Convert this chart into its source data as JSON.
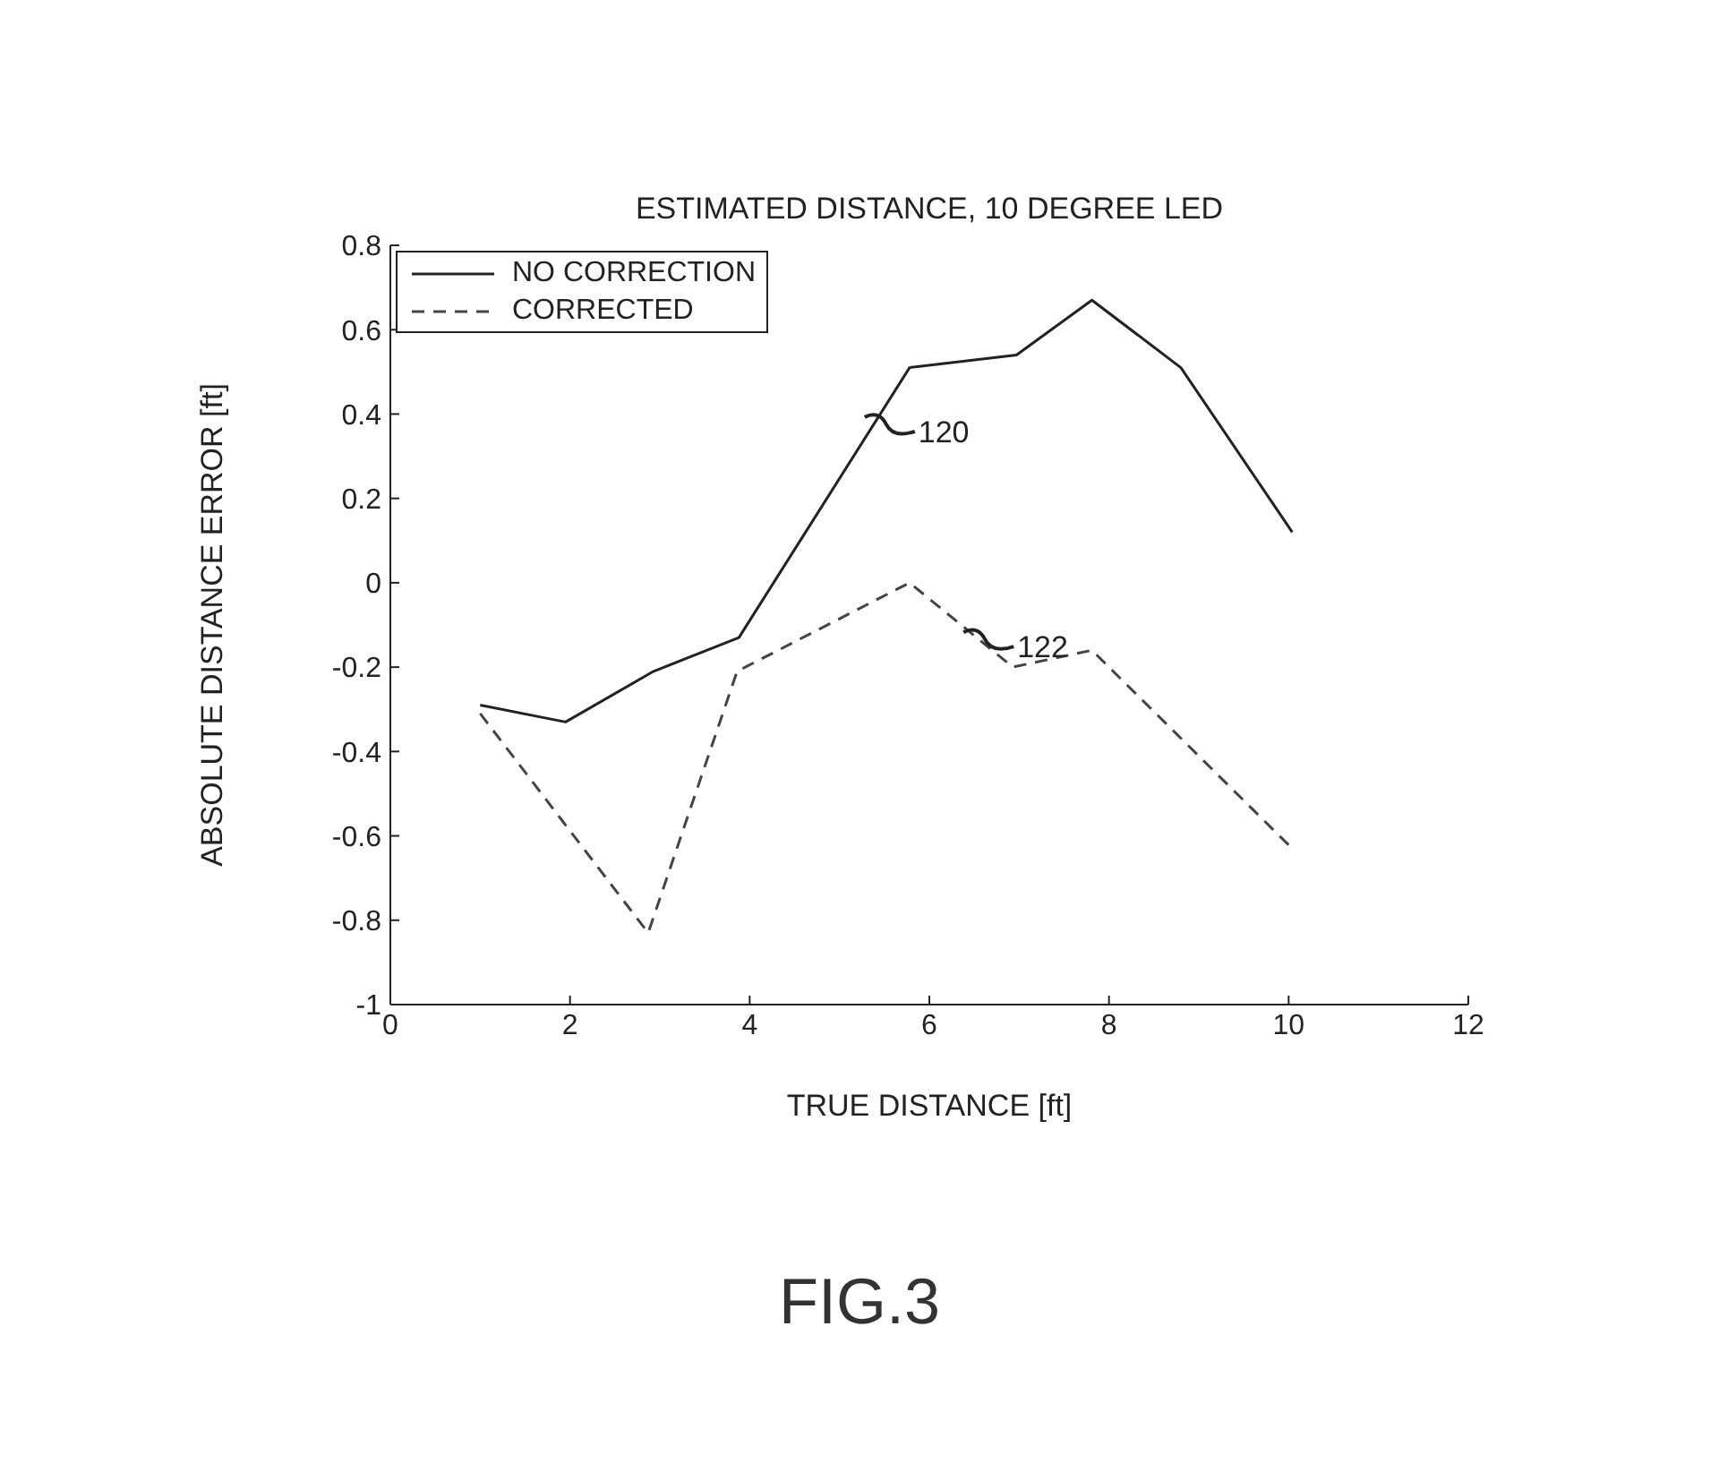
{
  "chart_data": {
    "type": "line",
    "title": "ESTIMATED DISTANCE, 10 DEGREE LED",
    "xlabel": "TRUE DISTANCE [ft]",
    "ylabel": "ABSOLUTE DISTANCE ERROR [ft]",
    "series": [
      {
        "name": "NO CORRECTION",
        "color": "#222222",
        "line_style": "solid",
        "x": [
          1,
          1.95,
          2.93,
          3.88,
          5.78,
          6.97,
          7.81,
          8.8,
          10.04
        ],
        "values": [
          -0.29,
          -0.33,
          -0.21,
          -0.13,
          0.51,
          0.54,
          0.67,
          0.51,
          0.12
        ]
      },
      {
        "name": "CORRECTED",
        "color": "#444444",
        "line_style": "dashed",
        "x": [
          1,
          2.87,
          3.86,
          5.78,
          6.93,
          7.81,
          10.04
        ],
        "values": [
          -0.31,
          -0.83,
          -0.21,
          0,
          -0.2,
          -0.16,
          -0.63
        ]
      }
    ],
    "xlim": [
      0,
      12
    ],
    "xticks": [
      0,
      2,
      4,
      6,
      8,
      10,
      12
    ],
    "ylim": [
      -1,
      0.8
    ],
    "yticks": [
      -1,
      -0.8,
      -0.6,
      -0.4,
      -0.2,
      0,
      0.2,
      0.4,
      0.6,
      0.8
    ],
    "legend": "top left",
    "marker": "none",
    "grid": false,
    "annotations": [
      {
        "text": "120",
        "x": 5.4,
        "y": 0.38
      },
      {
        "text": "122",
        "x": 6.5,
        "y": -0.13
      },
      "FIG.3"
    ]
  }
}
